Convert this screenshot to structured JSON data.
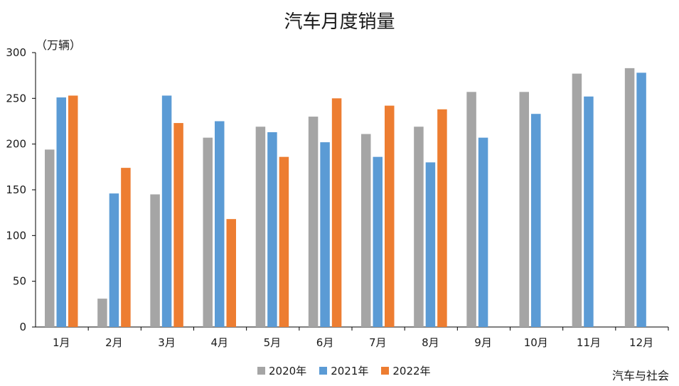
{
  "chart_data": {
    "type": "bar",
    "title": "汽车月度销量",
    "ylabel": "（万辆）",
    "ylim": [
      0,
      300
    ],
    "yticks": [
      0,
      50,
      100,
      150,
      200,
      250,
      300
    ],
    "categories": [
      "1月",
      "2月",
      "3月",
      "4月",
      "5月",
      "6月",
      "7月",
      "8月",
      "9月",
      "10月",
      "11月",
      "12月"
    ],
    "series": [
      {
        "name": "2020年",
        "color": "#a5a5a5",
        "values": [
          194,
          31,
          145,
          207,
          219,
          230,
          211,
          219,
          257,
          257,
          277,
          283
        ]
      },
      {
        "name": "2021年",
        "color": "#5b9bd5",
        "values": [
          251,
          146,
          253,
          225,
          213,
          202,
          186,
          180,
          207,
          233,
          252,
          278
        ]
      },
      {
        "name": "2022年",
        "color": "#ed7d31",
        "values": [
          253,
          174,
          223,
          118,
          186,
          250,
          242,
          238,
          null,
          null,
          null,
          null
        ]
      }
    ],
    "grid": false,
    "legend_position": "bottom"
  },
  "source": "汽车与社会"
}
